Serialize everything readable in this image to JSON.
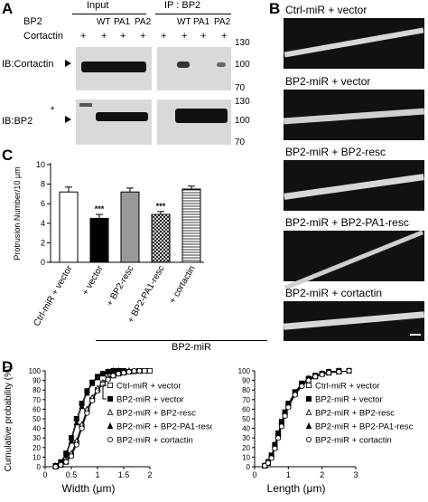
{
  "panel_a": {
    "label": "A",
    "group_input": "Input",
    "group_ip": "IP : BP2",
    "row_bp2": "BP2",
    "row_cortactin": "Cortactin",
    "lanes": [
      "",
      "WT",
      "PA1",
      "PA2",
      "",
      "WT",
      "PA1",
      "PA2"
    ],
    "plus": [
      "+",
      "+",
      "+",
      "+",
      "+",
      "+",
      "+",
      "+"
    ],
    "blot1_label": "IB:Cortactin",
    "blot2_label": "IB:BP2",
    "star": "*",
    "mw_top": [
      "130",
      "100",
      "70"
    ],
    "mw_bottom": [
      "130",
      "100",
      "70"
    ]
  },
  "panel_b": {
    "label": "B",
    "titles": [
      "Ctrl-miR + vector",
      "BP2-miR + vector",
      "BP2-miR + BP2-resc",
      "BP2-miR + BP2-PA1-resc",
      "BP2-miR + cortactin"
    ]
  },
  "panel_c": {
    "label": "C",
    "group_label": "BP2-miR",
    "chart_data": {
      "type": "bar",
      "ylabel": "Protrusion Number/10 μm",
      "ylim": [
        0,
        10
      ],
      "yticks": [
        "0",
        "2",
        "4",
        "6",
        "8",
        "10"
      ],
      "categories": [
        "Ctrl-miR + vector",
        "+ vector",
        "+ BP2-resc",
        "+ BP2-PA1-resc",
        "+ cortactin"
      ],
      "values": [
        7.2,
        4.5,
        7.2,
        4.9,
        7.5
      ],
      "errors": [
        0.5,
        0.4,
        0.4,
        0.3,
        0.3
      ],
      "significance": [
        "",
        "***",
        "",
        "***",
        ""
      ]
    }
  },
  "panel_d": {
    "label": "D",
    "star": "*",
    "legend": [
      "Ctrl-miR + vector",
      "BP2-miR + vector",
      "BP2-miR + BP2-resc",
      "BP2-miR + BP2-PA1-resc",
      "BP2-miR + cortactin"
    ],
    "chart_data": [
      {
        "type": "line",
        "ylabel": "Cumulative probability (%)",
        "xlabel": "Width (μm)",
        "xlim": [
          0,
          2
        ],
        "ylim": [
          0,
          100
        ],
        "xticks": [
          "0",
          "0.5",
          "1",
          "1.5",
          "2"
        ],
        "yticks": [
          "0",
          "10",
          "20",
          "30",
          "40",
          "50",
          "60",
          "70",
          "80",
          "90",
          "100"
        ],
        "series": [
          {
            "name": "Ctrl-miR + vector",
            "x": [
              0.2,
              0.3,
              0.4,
              0.5,
              0.6,
              0.7,
              0.8,
              0.9,
              1.0,
              1.1,
              1.2,
              1.3,
              1.4,
              1.5,
              1.6,
              1.7,
              1.8,
              1.9,
              2.0
            ],
            "y": [
              0,
              2,
              5,
              12,
              25,
              42,
              58,
              70,
              80,
              87,
              92,
              95,
              97,
              98,
              99,
              99.5,
              100,
              100,
              100
            ]
          },
          {
            "name": "BP2-miR + vector",
            "x": [
              0.2,
              0.3,
              0.4,
              0.5,
              0.6,
              0.7,
              0.8,
              0.9,
              1.0,
              1.1,
              1.2,
              1.3,
              1.4,
              1.5
            ],
            "y": [
              1,
              5,
              14,
              30,
              50,
              66,
              79,
              88,
              94,
              97,
              99,
              100,
              100,
              100
            ]
          },
          {
            "name": "BP2-miR + BP2-resc",
            "x": [
              0.2,
              0.3,
              0.4,
              0.5,
              0.6,
              0.7,
              0.8,
              0.9,
              1.0,
              1.1,
              1.2,
              1.3,
              1.4,
              1.5,
              1.6
            ],
            "y": [
              0,
              2,
              6,
              14,
              27,
              44,
              60,
              72,
              82,
              88,
              93,
              96,
              98,
              99,
              100
            ]
          },
          {
            "name": "BP2-miR + BP2-PA1-resc",
            "x": [
              0.2,
              0.3,
              0.4,
              0.5,
              0.6,
              0.7,
              0.8,
              0.9,
              1.0,
              1.1,
              1.2,
              1.3,
              1.4
            ],
            "y": [
              1,
              4,
              12,
              27,
              46,
              63,
              77,
              87,
              93,
              97,
              99,
              100,
              100
            ]
          },
          {
            "name": "BP2-miR + cortactin",
            "x": [
              0.2,
              0.3,
              0.4,
              0.5,
              0.6,
              0.7,
              0.8,
              0.9,
              1.0,
              1.1,
              1.2,
              1.3,
              1.4,
              1.5,
              1.6,
              1.7,
              1.8
            ],
            "y": [
              0,
              2,
              5,
              11,
              23,
              40,
              56,
              69,
              79,
              86,
              91,
              95,
              97,
              98,
              99,
              100,
              100
            ]
          }
        ]
      },
      {
        "type": "line",
        "xlabel": "Length (μm)",
        "xlim": [
          0,
          3
        ],
        "ylim": [
          0,
          100
        ],
        "xticks": [
          "0",
          "1",
          "2",
          "3"
        ],
        "yticks": [
          "0",
          "10",
          "20",
          "30",
          "40",
          "50",
          "60",
          "70",
          "80",
          "90",
          "100"
        ],
        "series": [
          {
            "name": "Ctrl-miR + vector",
            "x": [
              0.3,
              0.4,
              0.5,
              0.6,
              0.7,
              0.8,
              0.9,
              1.0,
              1.2,
              1.4,
              1.6,
              1.8,
              2.0,
              2.2,
              2.5,
              2.8
            ],
            "y": [
              1,
              4,
              10,
              20,
              32,
              44,
              55,
              64,
              77,
              86,
              91,
              95,
              97,
              98,
              99,
              100
            ]
          },
          {
            "name": "BP2-miR + vector",
            "x": [
              0.3,
              0.4,
              0.5,
              0.6,
              0.7,
              0.8,
              0.9,
              1.0,
              1.2,
              1.4,
              1.6,
              1.8,
              2.0,
              2.2,
              2.5
            ],
            "y": [
              1,
              5,
              12,
              23,
              35,
              47,
              57,
              66,
              78,
              87,
              92,
              95,
              97,
              99,
              100
            ]
          },
          {
            "name": "BP2-miR + BP2-resc",
            "x": [
              0.3,
              0.4,
              0.5,
              0.6,
              0.7,
              0.8,
              0.9,
              1.0,
              1.2,
              1.4,
              1.6,
              1.8,
              2.0,
              2.2,
              2.5,
              2.8
            ],
            "y": [
              1,
              4,
              10,
              20,
              31,
              43,
              54,
              63,
              76,
              85,
              91,
              94,
              97,
              98,
              99,
              100
            ]
          },
          {
            "name": "BP2-miR + BP2-PA1-resc",
            "x": [
              0.3,
              0.4,
              0.5,
              0.6,
              0.7,
              0.8,
              0.9,
              1.0,
              1.2,
              1.4,
              1.6,
              1.8,
              2.0,
              2.2,
              2.5
            ],
            "y": [
              1,
              5,
              11,
              22,
              34,
              46,
              56,
              65,
              77,
              86,
              92,
              95,
              97,
              99,
              100
            ]
          },
          {
            "name": "BP2-miR + cortactin",
            "x": [
              0.3,
              0.4,
              0.5,
              0.6,
              0.7,
              0.8,
              0.9,
              1.0,
              1.2,
              1.4,
              1.6,
              1.8,
              2.0,
              2.2,
              2.5,
              2.8
            ],
            "y": [
              1,
              4,
              9,
              19,
              30,
              42,
              53,
              62,
              75,
              84,
              90,
              94,
              96,
              98,
              99,
              100
            ]
          }
        ]
      }
    ]
  }
}
